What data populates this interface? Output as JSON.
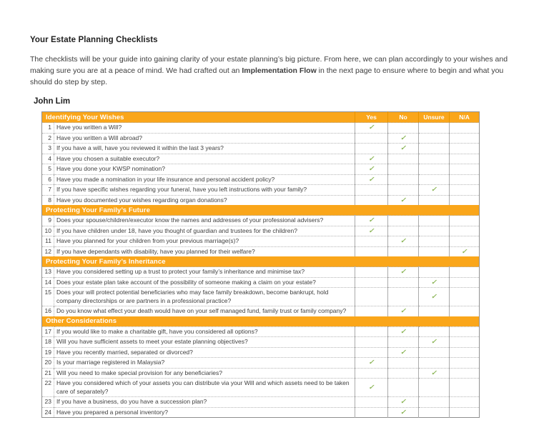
{
  "page": {
    "title": "Your Estate Planning Checklists",
    "intro": {
      "part1": "The checklists will be your guide into gaining clarity of your estate planning’s big picture. From here, we can plan accordingly to your wishes and making sure you are at a peace of mind. We had crafted out an ",
      "bold": "Implementation Flow",
      "part2": " in the next page to ensure where to begin and what you should do step by step."
    },
    "person_name": "John Lim"
  },
  "table": {
    "first_section": "Identifying Your Wishes",
    "columns": [
      "Yes",
      "No",
      "Unsure",
      "N/A"
    ],
    "check_glyph": "✓",
    "colors": {
      "header_bg": "#FAA61A",
      "header_text": "#FFFFFF",
      "check_green": "#8BB556"
    },
    "rows": [
      {
        "num": 1,
        "q": "Have you written a Will?",
        "a": "Yes"
      },
      {
        "num": 2,
        "q": "Have you written a Will abroad?",
        "a": "No"
      },
      {
        "num": 3,
        "q": "If you have a will, have you reviewed it within the last 3 years?",
        "a": "No"
      },
      {
        "num": 4,
        "q": "Have you chosen a suitable executor?",
        "a": "Yes"
      },
      {
        "num": 5,
        "q": "Have you done your KWSP nomination?",
        "a": "Yes"
      },
      {
        "num": 6,
        "q": "Have you made a nomination in your life insurance and personal accident policy?",
        "a": "Yes"
      },
      {
        "num": 7,
        "q": "If you have specific wishes regarding your funeral, have you left instructions with your family?",
        "a": "Unsure"
      },
      {
        "num": 8,
        "q": "Have you documented your wishes regarding organ donations?",
        "a": "No"
      },
      {
        "section": "Protecting Your Family’s Future"
      },
      {
        "num": 9,
        "q": "Does your spouse/children/executor know the names and addresses of your professional advisers?",
        "a": "Yes"
      },
      {
        "num": 10,
        "q": "If you have children under 18, have you thought of guardian and trustees for the children?",
        "a": "Yes"
      },
      {
        "num": 11,
        "q": "Have you planned for your children from your previous marriage(s)?",
        "a": "No"
      },
      {
        "num": 12,
        "q": "If you have dependants with disability, have you planned for their welfare?",
        "a": "N/A"
      },
      {
        "section": "Protecting Your Family’s Inheritance"
      },
      {
        "num": 13,
        "q": "Have you considered setting up a trust to protect your family’s inheritance and minimise tax?",
        "a": "No"
      },
      {
        "num": 14,
        "q": "Does your estate plan take account of the possibility of someone making a claim on your estate?",
        "a": "Unsure"
      },
      {
        "num": 15,
        "q": "Does your will protect potential beneficiaries who may face family breakdown, become bankrupt, hold company directorships or are partners in a professional practice?",
        "a": "Unsure"
      },
      {
        "num": 16,
        "q": "Do you know what effect your death would have on your self managed fund, family trust or family company?",
        "a": "No"
      },
      {
        "section": "Other Considerations"
      },
      {
        "num": 17,
        "q": "If you would like to make a charitable gift, have you considered all options?",
        "a": "No"
      },
      {
        "num": 18,
        "q": "Will you have sufficient assets to meet your estate planning objectives?",
        "a": "Unsure"
      },
      {
        "num": 19,
        "q": "Have you recently married, separated or divorced?",
        "a": "No"
      },
      {
        "num": 20,
        "q": "Is your marriage registered in Malaysia?",
        "a": "Yes"
      },
      {
        "num": 21,
        "q": "Will you need to make special provision for any beneficiaries?",
        "a": "Unsure"
      },
      {
        "num": 22,
        "q": "Have you considered which of your assets you can distribute via your Will and which assets need to be taken care of separately?",
        "a": "Yes"
      },
      {
        "num": 23,
        "q": "If you have a business, do you have a succession plan?",
        "a": "No"
      },
      {
        "num": 24,
        "q": "Have you prepared a personal inventory?",
        "a": "No"
      }
    ]
  }
}
